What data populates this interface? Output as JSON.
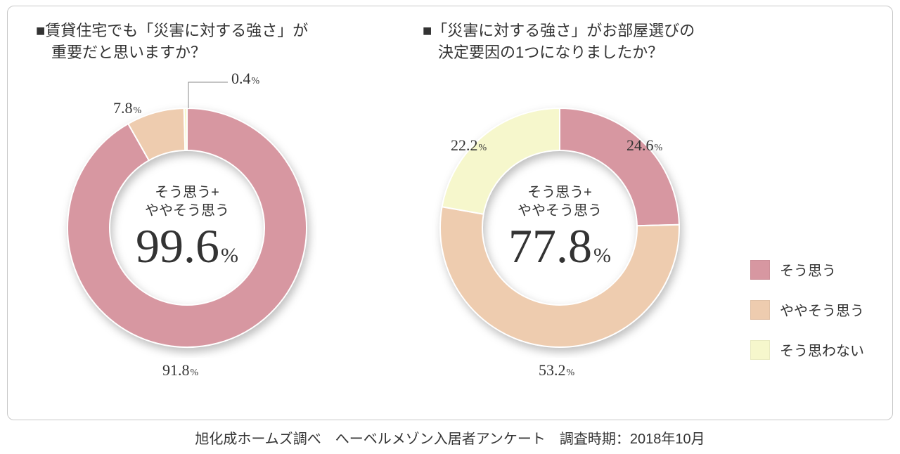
{
  "colors": {
    "think_so": "#d797a1",
    "somewhat": "#eeccaf",
    "dont_think": "#f6f7cc",
    "stroke": "#ffffff",
    "panel_border": "#c8c8c8",
    "text": "#333333",
    "leader": "#888888"
  },
  "legend": {
    "items": [
      {
        "key": "think_so",
        "label": "そう思う"
      },
      {
        "key": "somewhat",
        "label": "ややそう思う"
      },
      {
        "key": "dont_think",
        "label": "そう思わない"
      }
    ]
  },
  "chart1": {
    "type": "donut",
    "question_line1": "■賃貸住宅でも「災害に対する強さ」が",
    "question_line2": "　重要だと思いますか？",
    "center_label_line1": "そう思う+",
    "center_label_line2": "ややそう思う",
    "center_value": "99.6",
    "slices": [
      {
        "key": "think_so",
        "value": 91.8,
        "label": "91.8"
      },
      {
        "key": "somewhat",
        "value": 7.8,
        "label": "7.8"
      },
      {
        "key": "dont_think",
        "value": 0.4,
        "label": "0.4"
      }
    ],
    "outer_r": 170,
    "inner_r": 110,
    "start_angle_deg": 90
  },
  "chart2": {
    "type": "donut",
    "question_line1": "■「災害に対する強さ」がお部屋選びの",
    "question_line2": "　決定要因の1つになりましたか？",
    "center_label_line1": "そう思う+",
    "center_label_line2": "ややそう思う",
    "center_value": "77.8",
    "slices": [
      {
        "key": "think_so",
        "value": 24.6,
        "label": "24.6"
      },
      {
        "key": "somewhat",
        "value": 53.2,
        "label": "53.2"
      },
      {
        "key": "dont_think",
        "value": 22.2,
        "label": "22.2"
      }
    ],
    "outer_r": 170,
    "inner_r": 110,
    "start_angle_deg": 90
  },
  "footer": "旭化成ホームズ調べ　へーベルメゾン入居者アンケート　調査時期：2018年10月"
}
